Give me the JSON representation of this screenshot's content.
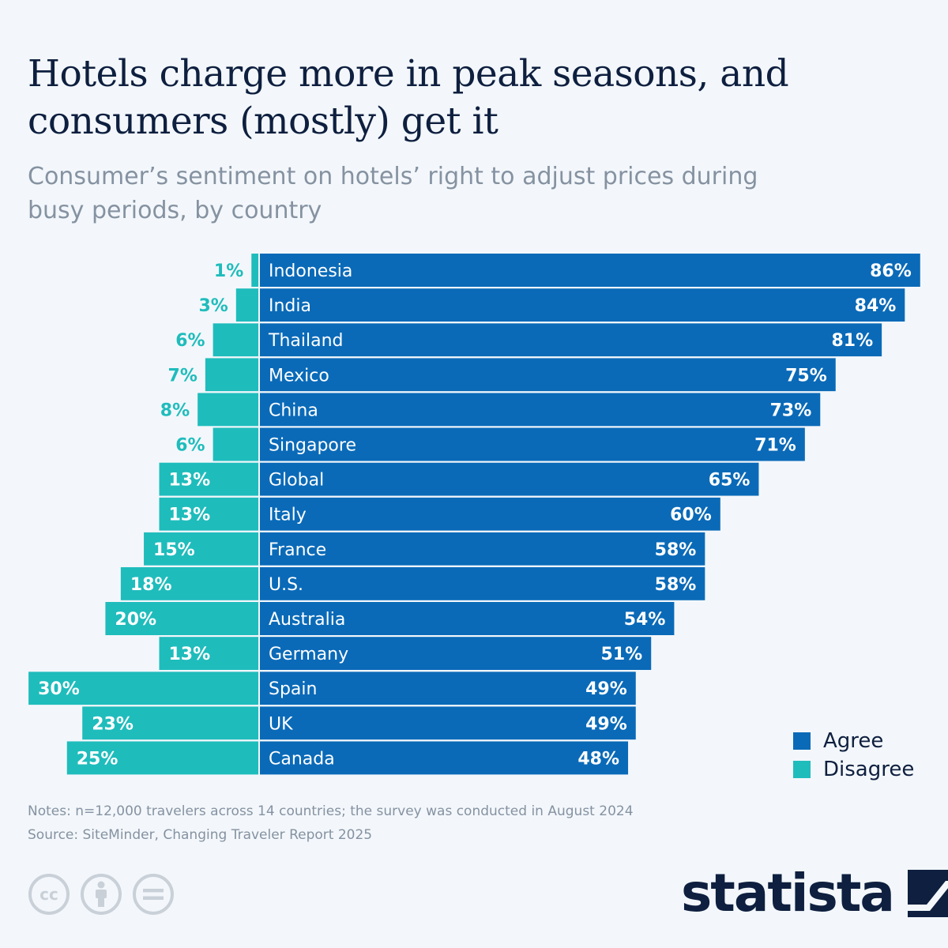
{
  "title": "Hotels charge more in peak seasons, and consumers (mostly) get it",
  "subtitle": "Consumer’s sentiment on hotels’ right to adjust prices during busy periods, by country",
  "colors": {
    "agree": "#0a6ab8",
    "disagree": "#1fbcbc",
    "text_dark": "#0e1f3f",
    "muted": "#8592a1"
  },
  "legend": [
    {
      "label": "Agree",
      "color": "#0a6ab8"
    },
    {
      "label": "Disagree",
      "color": "#1fbcbc"
    }
  ],
  "chart_data": {
    "type": "bar",
    "orientation": "horizontal",
    "stacking": "diverging",
    "categories": [
      "Indonesia",
      "India",
      "Thailand",
      "Mexico",
      "China",
      "Singapore",
      "Global",
      "Italy",
      "France",
      "U.S.",
      "Australia",
      "Germany",
      "Spain",
      "UK",
      "Canada"
    ],
    "series": [
      {
        "name": "Agree",
        "values": [
          86,
          84,
          81,
          75,
          73,
          71,
          65,
          60,
          58,
          58,
          54,
          51,
          49,
          49,
          48
        ]
      },
      {
        "name": "Disagree",
        "values": [
          1,
          3,
          6,
          7,
          8,
          6,
          13,
          13,
          15,
          18,
          20,
          13,
          30,
          23,
          25
        ]
      }
    ],
    "unit": "%",
    "legend_position": "bottom-right",
    "grid": false
  },
  "notes": "Notes: n=12,000 travelers across 14 countries; the survey was conducted in August 2024",
  "source": "Source: SiteMinder, Changing Traveler Report 2025",
  "license_icons": [
    "cc-icon",
    "attribution-icon",
    "no-derivatives-icon"
  ],
  "brand": "statista"
}
